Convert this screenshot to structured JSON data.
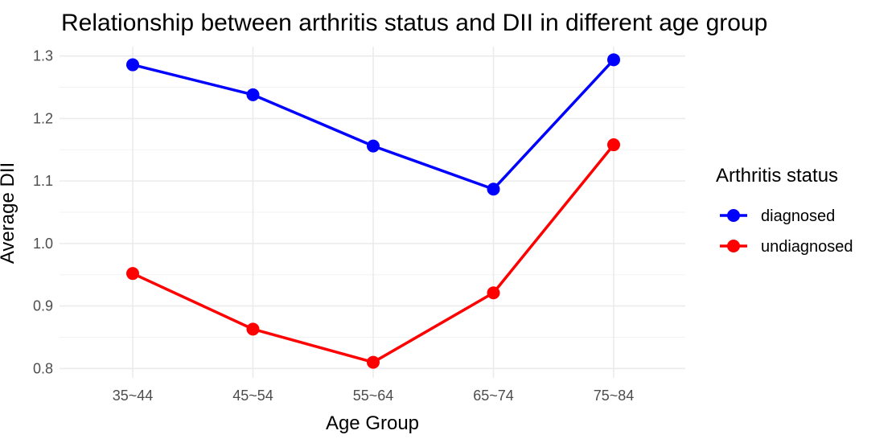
{
  "chart_data": {
    "type": "line",
    "title": "Relationship between arthritis status and DII in different age group",
    "xlabel": "Age Group",
    "ylabel": "Average DII",
    "categories": [
      "35~44",
      "45~54",
      "55~64",
      "65~74",
      "75~84"
    ],
    "ylim": [
      0.785,
      1.315
    ],
    "yticks": [
      0.8,
      0.9,
      1.0,
      1.1,
      1.2,
      1.3
    ],
    "ytick_labels": [
      "0.8",
      "0.9",
      "1.0",
      "1.1",
      "1.2",
      "1.3"
    ],
    "grid": true,
    "legend_title": "Arthritis status",
    "legend_position": "right",
    "series": [
      {
        "name": "diagnosed",
        "color": "#0000ff",
        "values": [
          1.286,
          1.238,
          1.156,
          1.087,
          1.294
        ]
      },
      {
        "name": "undiagnosed",
        "color": "#ff0000",
        "values": [
          0.952,
          0.863,
          0.81,
          0.921,
          1.158
        ]
      }
    ]
  }
}
